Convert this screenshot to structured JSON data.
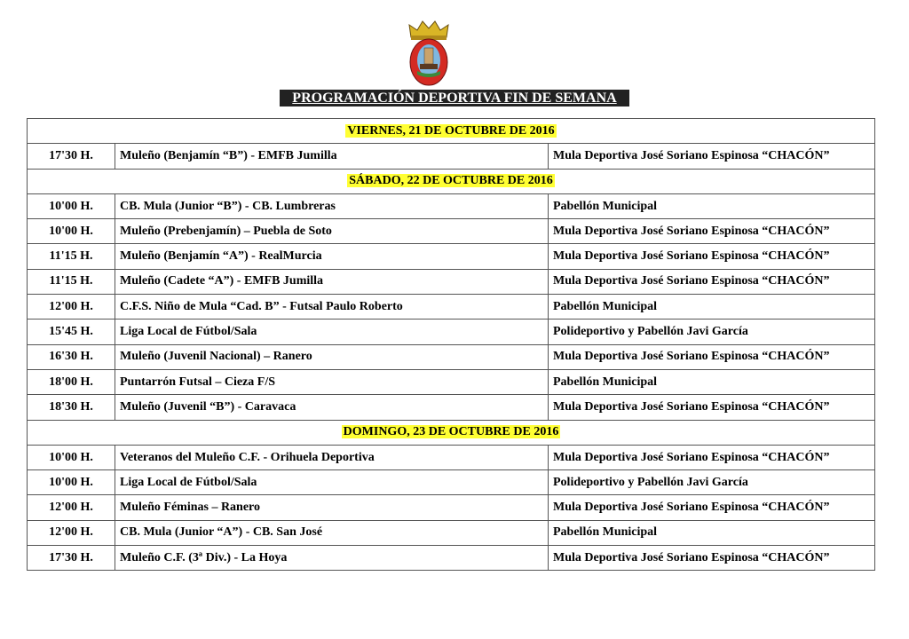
{
  "title": "PROGRAMACIÓN DEPORTIVA FIN DE SEMANA",
  "logo": "Escudo de Mula",
  "days": [
    {
      "label": "VIERNES, 21 DE OCTUBRE DE 2016",
      "events": [
        {
          "time": "17'30 H.",
          "match": "Muleño (Benjamín “B”) - EMFB Jumilla",
          "venue": "Mula Deportiva José Soriano Espinosa “CHACÓN”"
        }
      ]
    },
    {
      "label": "SÁBADO, 22 DE OCTUBRE DE 2016",
      "events": [
        {
          "time": "10'00 H.",
          "match": "CB. Mula (Junior “B”) - CB. Lumbreras",
          "venue": "Pabellón Municipal"
        },
        {
          "time": "10'00 H.",
          "match": "Muleño (Prebenjamín) – Puebla de Soto",
          "venue": "Mula Deportiva José Soriano Espinosa “CHACÓN”"
        },
        {
          "time": "11'15 H.",
          "match": "Muleño (Benjamín “A”) - RealMurcia",
          "venue": "Mula Deportiva José Soriano Espinosa “CHACÓN”"
        },
        {
          "time": "11'15 H.",
          "match": "Muleño (Cadete “A”) - EMFB Jumilla",
          "venue": "Mula Deportiva José Soriano Espinosa “CHACÓN”"
        },
        {
          "time": "12'00 H.",
          "match": "C.F.S. Niño de Mula “Cad. B” - Futsal Paulo Roberto",
          "venue": "Pabellón Municipal"
        },
        {
          "time": "15'45 H.",
          "match": "Liga Local de Fútbol/Sala",
          "venue": "Polideportivo y Pabellón Javi García"
        },
        {
          "time": "16'30 H.",
          "match": "Muleño (Juvenil Nacional) – Ranero",
          "venue": "Mula Deportiva José Soriano Espinosa “CHACÓN”"
        },
        {
          "time": "18'00 H.",
          "match": "Puntarrón Futsal – Cieza F/S",
          "venue": "Pabellón Municipal"
        },
        {
          "time": "18'30 H.",
          "match": "Muleño (Juvenil “B”) - Caravaca",
          "venue": "Mula Deportiva José Soriano Espinosa “CHACÓN”"
        }
      ]
    },
    {
      "label": "DOMINGO, 23 DE OCTUBRE DE 2016",
      "events": [
        {
          "time": "10'00 H.",
          "match": "Veteranos del Muleño C.F. - Orihuela Deportiva",
          "venue": "Mula Deportiva José Soriano Espinosa “CHACÓN”"
        },
        {
          "time": "10'00 H.",
          "match": "Liga Local de Fútbol/Sala",
          "venue": "Polideportivo y Pabellón Javi García"
        },
        {
          "time": "12'00 H.",
          "match": "Muleño Féminas – Ranero",
          "venue": "Mula Deportiva José Soriano Espinosa “CHACÓN”"
        },
        {
          "time": "12'00 H.",
          "match": "CB. Mula (Junior “A”) - CB. San José",
          "venue": "Pabellón Municipal"
        },
        {
          "time": "17'30 H.",
          "match": "Muleño C.F. (3ª Div.) - La Hoya",
          "venue": "Mula Deportiva José Soriano Espinosa “CHACÓN”"
        }
      ]
    }
  ]
}
